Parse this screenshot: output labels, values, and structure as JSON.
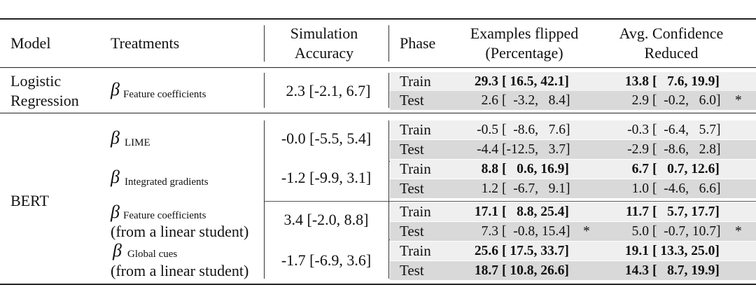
{
  "headers": {
    "model": "Model",
    "treatments": "Treatments",
    "sim_acc_1": "Simulation",
    "sim_acc_2": "Accuracy",
    "phase": "Phase",
    "flipped_1": "Examples flipped",
    "flipped_2": "(Percentage)",
    "conf_1": "Avg. Confidence",
    "conf_2": "Reduced"
  },
  "models": {
    "lr_1": "Logistic",
    "lr_2": "Regression",
    "bert": "BERT"
  },
  "beta": "β",
  "treatments": [
    {
      "sub": "Feature coefficients",
      "note": ""
    },
    {
      "sub": "LIME",
      "note": ""
    },
    {
      "sub": "Integrated gradients",
      "note": ""
    },
    {
      "sub": "Feature coefficients",
      "note": "(from a linear student)"
    },
    {
      "sub": "Global cues",
      "note": "(from a linear student)"
    }
  ],
  "sim_accuracy": [
    "2.3 [-2.1, 6.7]",
    "-0.0 [-5.5, 5.4]",
    "-1.2 [-9.9, 3.1]",
    "3.4 [-2.0, 8.8]",
    "-1.7 [-6.9, 3.6]"
  ],
  "rows": [
    {
      "phase": "Train",
      "flip": "29.3",
      "flip_ci": "[ 16.5, 42.1]",
      "flip_bold": true,
      "flip_star": "",
      "conf": "13.8",
      "conf_ci": "[   7.6, 19.9]",
      "conf_bold": true,
      "conf_star": ""
    },
    {
      "phase": "Test",
      "flip": "2.6",
      "flip_ci": "[  -3.2,   8.4]",
      "flip_bold": false,
      "flip_star": "",
      "conf": "2.9",
      "conf_ci": "[  -0.2,   6.0]",
      "conf_bold": false,
      "conf_star": "*"
    },
    {
      "phase": "Train",
      "flip": "-0.5",
      "flip_ci": "[  -8.6,   7.6]",
      "flip_bold": false,
      "flip_star": "",
      "conf": "-0.3",
      "conf_ci": "[  -6.4,   5.7]",
      "conf_bold": false,
      "conf_star": ""
    },
    {
      "phase": "Test",
      "flip": "-4.4",
      "flip_ci": "[-12.5,   3.7]",
      "flip_bold": false,
      "flip_star": "",
      "conf": "-2.9",
      "conf_ci": "[  -8.6,   2.8]",
      "conf_bold": false,
      "conf_star": ""
    },
    {
      "phase": "Train",
      "flip": "8.8",
      "flip_ci": "[   0.6, 16.9]",
      "flip_bold": true,
      "flip_star": "",
      "conf": "6.7",
      "conf_ci": "[   0.7, 12.6]",
      "conf_bold": true,
      "conf_star": ""
    },
    {
      "phase": "Test",
      "flip": "1.2",
      "flip_ci": "[  -6.7,   9.1]",
      "flip_bold": false,
      "flip_star": "",
      "conf": "1.0",
      "conf_ci": "[  -4.6,   6.6]",
      "conf_bold": false,
      "conf_star": ""
    },
    {
      "phase": "Train",
      "flip": "17.1",
      "flip_ci": "[   8.8, 25.4]",
      "flip_bold": true,
      "flip_star": "",
      "conf": "11.7",
      "conf_ci": "[   5.7, 17.7]",
      "conf_bold": true,
      "conf_star": ""
    },
    {
      "phase": "Test",
      "flip": "7.3",
      "flip_ci": "[  -0.8, 15.4]",
      "flip_bold": false,
      "flip_star": "*",
      "conf": "5.0",
      "conf_ci": "[  -0.7, 10.7]",
      "conf_bold": false,
      "conf_star": "*"
    },
    {
      "phase": "Train",
      "flip": "25.6",
      "flip_ci": "[ 17.5, 33.7]",
      "flip_bold": true,
      "flip_star": "",
      "conf": "19.1",
      "conf_ci": "[ 13.3, 25.0]",
      "conf_bold": true,
      "conf_star": ""
    },
    {
      "phase": "Test",
      "flip": "18.7",
      "flip_ci": "[ 10.8, 26.6]",
      "flip_bold": true,
      "flip_star": "",
      "conf": "14.3",
      "conf_ci": "[   8.7, 19.9]",
      "conf_bold": true,
      "conf_star": ""
    }
  ],
  "colors": {
    "shade_light": "#efefef",
    "shade_dark": "#d9d9d9",
    "rule": "#222222"
  }
}
